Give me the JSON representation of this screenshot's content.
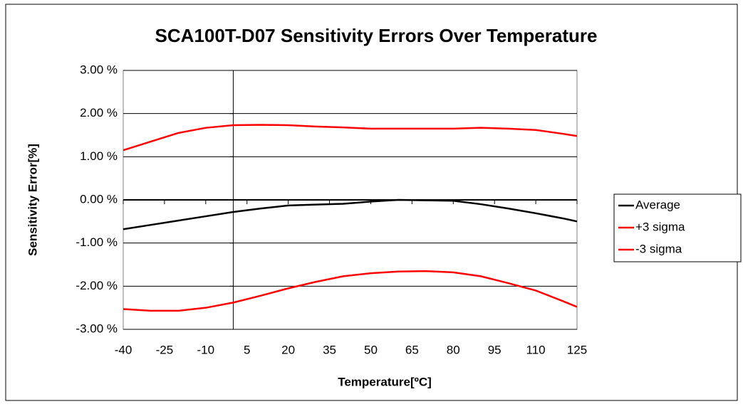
{
  "chart_data": {
    "type": "line",
    "title": "SCA100T-D07 Sensitivity Errors Over Temperature",
    "x_label": "Temperature[ºC]",
    "y_label": "Sensitivity Error[%]",
    "x": [
      -40,
      -30,
      -20,
      -10,
      0,
      10,
      20,
      30,
      40,
      50,
      60,
      70,
      80,
      90,
      100,
      110,
      120,
      125
    ],
    "series": [
      {
        "name": "Average",
        "color": "#000000",
        "values": [
          -0.68,
          -0.58,
          -0.48,
          -0.38,
          -0.28,
          -0.2,
          -0.13,
          -0.11,
          -0.09,
          -0.04,
          0,
          -0.01,
          -0.02,
          -0.1,
          -0.2,
          -0.31,
          -0.43,
          -0.5
        ]
      },
      {
        "name": "+3 sigma",
        "color": "#ff0000",
        "values": [
          1.15,
          1.35,
          1.55,
          1.67,
          1.73,
          1.74,
          1.73,
          1.7,
          1.68,
          1.65,
          1.65,
          1.65,
          1.65,
          1.67,
          1.65,
          1.62,
          1.53,
          1.48
        ]
      },
      {
        "name": "-3 sigma",
        "color": "#ff0000",
        "values": [
          -2.53,
          -2.57,
          -2.57,
          -2.5,
          -2.38,
          -2.22,
          -2.05,
          -1.9,
          -1.77,
          -1.7,
          -1.66,
          -1.65,
          -1.68,
          -1.77,
          -1.93,
          -2.1,
          -2.35,
          -2.48
        ]
      }
    ],
    "xlim": [
      -40,
      125
    ],
    "xticks": [
      -40,
      -25,
      -10,
      5,
      20,
      35,
      50,
      65,
      80,
      95,
      110,
      125
    ],
    "ylim": [
      -3,
      3
    ],
    "yticks": [
      {
        "value": -3,
        "label": "-3.00 %"
      },
      {
        "value": -2,
        "label": "-2.00 %"
      },
      {
        "value": -1,
        "label": "-1.00 %"
      },
      {
        "value": 0,
        "label": "0.00 %"
      },
      {
        "value": 1,
        "label": "1.00 %"
      },
      {
        "value": 2,
        "label": "2.00 %"
      },
      {
        "value": 3,
        "label": "3.00 %"
      }
    ],
    "y_axis_at_x": 0,
    "x_axis_at_y": 0,
    "grid": true,
    "legend": "right"
  }
}
